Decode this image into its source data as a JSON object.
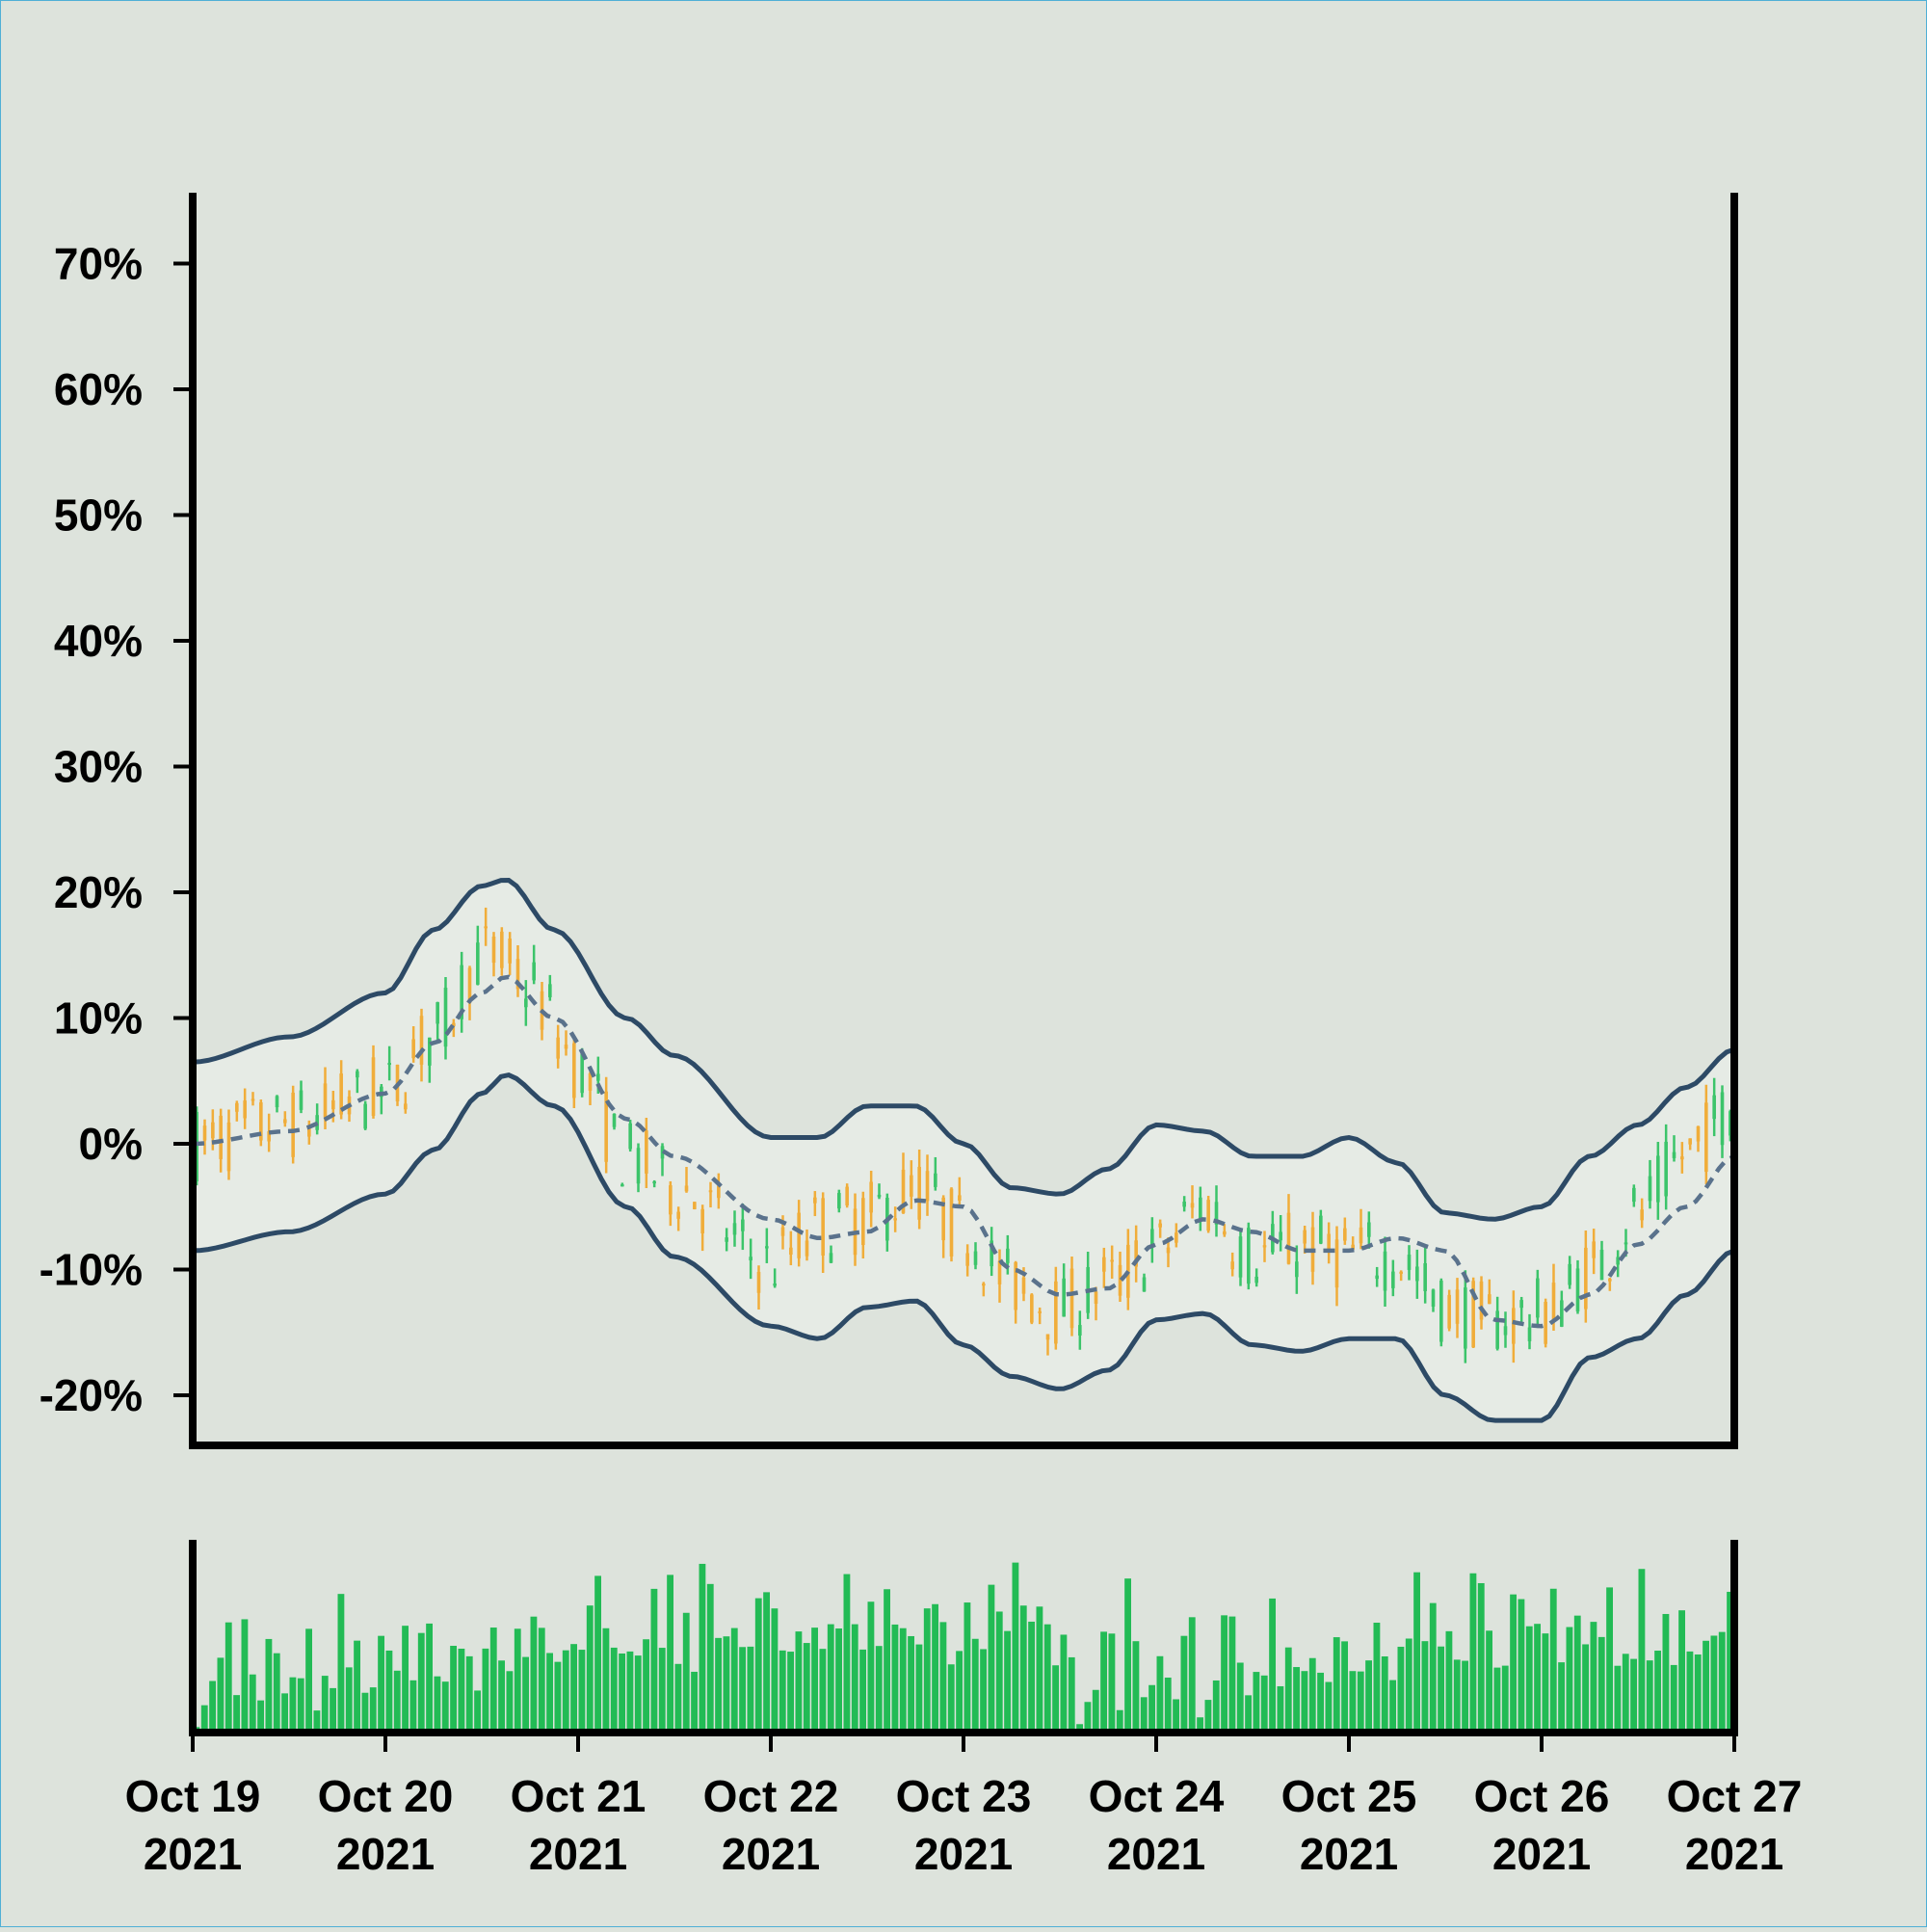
{
  "colors": {
    "background": "#dde3dc",
    "up_candle": "#3cc46a",
    "down_candle": "#f0ad3a",
    "band_line": "#2d4a66",
    "middle_line": "#5a728c",
    "band_fill": "#e6ebe5",
    "volume": "#22bb55",
    "axis": "#000000"
  },
  "chart_data": [
    {
      "type": "candlestick",
      "title": "",
      "ylabel": "",
      "xlabel": "",
      "y_unit": "%",
      "ylim": [
        -24,
        76
      ],
      "yticks": [
        "70%",
        "60%",
        "50%",
        "40%",
        "30%",
        "20%",
        "10%",
        "0%",
        "-10%",
        "-20%"
      ],
      "ytick_values": [
        70,
        60,
        50,
        40,
        30,
        20,
        10,
        0,
        -10,
        -20
      ],
      "x_range": [
        "2021-10-19",
        "2021-10-27"
      ],
      "grid": false,
      "series": [
        {
          "kind": "close",
          "x": [
            "2021-10-19 00:00",
            "2021-10-19 12:00",
            "2021-10-20 00:00",
            "2021-10-20 06:00",
            "2021-10-20 12:00",
            "2021-10-20 18:00",
            "2021-10-21 00:00",
            "2021-10-21 06:00",
            "2021-10-21 12:00",
            "2021-10-22 00:00",
            "2021-10-22 06:00",
            "2021-10-22 12:00",
            "2021-10-22 18:00",
            "2021-10-23 00:00",
            "2021-10-23 06:00",
            "2021-10-23 12:00",
            "2021-10-23 18:00",
            "2021-10-24 00:00",
            "2021-10-24 06:00",
            "2021-10-24 12:00",
            "2021-10-24 18:00",
            "2021-10-25 00:00",
            "2021-10-25 06:00",
            "2021-10-25 12:00",
            "2021-10-25 18:00",
            "2021-10-26 00:00",
            "2021-10-26 06:00",
            "2021-10-26 12:00",
            "2021-10-26 18:00",
            "2021-10-27 00:00"
          ],
          "values": [
            0,
            2,
            4,
            9,
            17,
            13,
            5,
            -3,
            -5,
            -12,
            -6,
            -5,
            -3,
            -8,
            -12,
            -14,
            -11,
            -9,
            -4,
            -10,
            -8,
            -9,
            -10,
            -16,
            -14,
            -13,
            -9,
            -4,
            2,
            6
          ]
        },
        {
          "kind": "middle-band",
          "x": [
            "2021-10-19 00:00",
            "2021-10-19 12:00",
            "2021-10-20 00:00",
            "2021-10-20 06:00",
            "2021-10-20 12:00",
            "2021-10-20 15:00",
            "2021-10-20 21:00",
            "2021-10-21 06:00",
            "2021-10-21 12:00",
            "2021-10-22 00:00",
            "2021-10-22 06:00",
            "2021-10-22 12:00",
            "2021-10-22 18:00",
            "2021-10-23 00:00",
            "2021-10-23 06:00",
            "2021-10-23 12:00",
            "2021-10-23 18:00",
            "2021-10-24 00:00",
            "2021-10-24 06:00",
            "2021-10-24 12:00",
            "2021-10-24 18:00",
            "2021-10-25 00:00",
            "2021-10-25 06:00",
            "2021-10-25 12:00",
            "2021-10-25 18:00",
            "2021-10-26 00:00",
            "2021-10-26 06:00",
            "2021-10-26 12:00",
            "2021-10-26 18:00",
            "2021-10-27 00:00"
          ],
          "values": [
            0,
            1,
            4,
            8,
            12,
            13.3,
            10,
            2,
            -1,
            -6,
            -7.5,
            -7,
            -4.5,
            -5,
            -10,
            -12,
            -11.5,
            -8,
            -6,
            -7,
            -8.5,
            -8.5,
            -7.5,
            -8.5,
            -14,
            -14.5,
            -12,
            -8,
            -5,
            -1
          ]
        },
        {
          "kind": "upper-band",
          "x": [
            "2021-10-19 00:00",
            "2021-10-19 12:00",
            "2021-10-20 00:00",
            "2021-10-20 06:00",
            "2021-10-20 12:00",
            "2021-10-20 15:00",
            "2021-10-20 21:00",
            "2021-10-21 06:00",
            "2021-10-21 12:00",
            "2021-10-22 00:00",
            "2021-10-22 06:00",
            "2021-10-22 12:00",
            "2021-10-22 18:00",
            "2021-10-23 00:00",
            "2021-10-23 06:00",
            "2021-10-23 12:00",
            "2021-10-23 18:00",
            "2021-10-24 00:00",
            "2021-10-24 06:00",
            "2021-10-24 12:00",
            "2021-10-24 18:00",
            "2021-10-25 00:00",
            "2021-10-25 06:00",
            "2021-10-25 12:00",
            "2021-10-25 18:00",
            "2021-10-26 00:00",
            "2021-10-26 06:00",
            "2021-10-26 12:00",
            "2021-10-26 18:00",
            "2021-10-27 00:00"
          ],
          "values": [
            6.5,
            8.5,
            12,
            17,
            20.5,
            21,
            17,
            10,
            7,
            0.5,
            0.5,
            3,
            3,
            0,
            -3.5,
            -4,
            -2,
            1.5,
            1,
            -1,
            -1,
            0.5,
            -1.5,
            -5.5,
            -6,
            -5,
            -1,
            1.5,
            4.5,
            7.5
          ]
        },
        {
          "kind": "lower-band",
          "x": [
            "2021-10-19 00:00",
            "2021-10-19 12:00",
            "2021-10-20 00:00",
            "2021-10-20 06:00",
            "2021-10-20 12:00",
            "2021-10-20 15:00",
            "2021-10-20 21:00",
            "2021-10-21 06:00",
            "2021-10-21 12:00",
            "2021-10-22 00:00",
            "2021-10-22 06:00",
            "2021-10-22 12:00",
            "2021-10-22 18:00",
            "2021-10-23 00:00",
            "2021-10-23 06:00",
            "2021-10-23 12:00",
            "2021-10-23 18:00",
            "2021-10-24 00:00",
            "2021-10-24 06:00",
            "2021-10-24 12:00",
            "2021-10-24 18:00",
            "2021-10-25 00:00",
            "2021-10-25 06:00",
            "2021-10-25 12:00",
            "2021-10-25 18:00",
            "2021-10-26 00:00",
            "2021-10-26 06:00",
            "2021-10-26 12:00",
            "2021-10-26 18:00",
            "2021-10-27 00:00"
          ],
          "values": [
            -8.5,
            -7,
            -4,
            -0.5,
            4,
            5.5,
            3,
            -5,
            -9,
            -14.5,
            -15.5,
            -13,
            -12.5,
            -16,
            -18.5,
            -19.5,
            -18,
            -14,
            -13.5,
            -16,
            -16.5,
            -15.5,
            -15.5,
            -20,
            -22,
            -22,
            -17,
            -15.5,
            -12,
            -8.5
          ]
        }
      ]
    },
    {
      "type": "bar",
      "title": "",
      "ylabel": "",
      "x_range": [
        "2021-10-19",
        "2021-10-27"
      ],
      "xticks": [
        {
          "line1": "Oct 19",
          "line2": "2021"
        },
        {
          "line1": "Oct 20",
          "line2": "2021"
        },
        {
          "line1": "Oct 21",
          "line2": "2021"
        },
        {
          "line1": "Oct 22",
          "line2": "2021"
        },
        {
          "line1": "Oct 23",
          "line2": "2021"
        },
        {
          "line1": "Oct 24",
          "line2": "2021"
        },
        {
          "line1": "Oct 25",
          "line2": "2021"
        },
        {
          "line1": "Oct 26",
          "line2": "2021"
        },
        {
          "line1": "Oct 27",
          "line2": "2021"
        }
      ],
      "bar_count": 192,
      "volume_levels": [
        0.05,
        0.25,
        0.35,
        0.6,
        0.7,
        0.2,
        0.75,
        0.55,
        0.3,
        0.45,
        0.4,
        0.35,
        0.3,
        0.5,
        0.6,
        0.15,
        0.3,
        0.35,
        0.7,
        0.6,
        0.45,
        0.3,
        0.35,
        0.5,
        0.65,
        0.45,
        0.55,
        0.4,
        0.5,
        0.6,
        0.45,
        0.3,
        0.75,
        0.55,
        0.4,
        0.35,
        0.5,
        0.7,
        0.4,
        0.45,
        0.6,
        0.5,
        0.8,
        0.75,
        0.65,
        0.55,
        0.5,
        0.6,
        0.55,
        0.8,
        0.85,
        0.55,
        0.6,
        0.5,
        0.7,
        0.65,
        0.85,
        0.75,
        0.7,
        0.8,
        0.65,
        0.7,
        0.6,
        0.85,
        0.9,
        0.7,
        0.75,
        0.55,
        0.6,
        0.65,
        0.85,
        0.7,
        0.75,
        0.6,
        0.55,
        0.7,
        0.75,
        0.65,
        0.5,
        0.55,
        0.6,
        0.8,
        0.7,
        0.6,
        0.65,
        0.55,
        0.75,
        0.7,
        0.5,
        0.6,
        0.7,
        0.8,
        0.65,
        0.55,
        0.5,
        0.65,
        0.7,
        0.85,
        0.6,
        0.75,
        0.7,
        0.65,
        0.85,
        0.8,
        0.6,
        0.7,
        0.55,
        0.65,
        0.6,
        0.5
      ]
    }
  ]
}
